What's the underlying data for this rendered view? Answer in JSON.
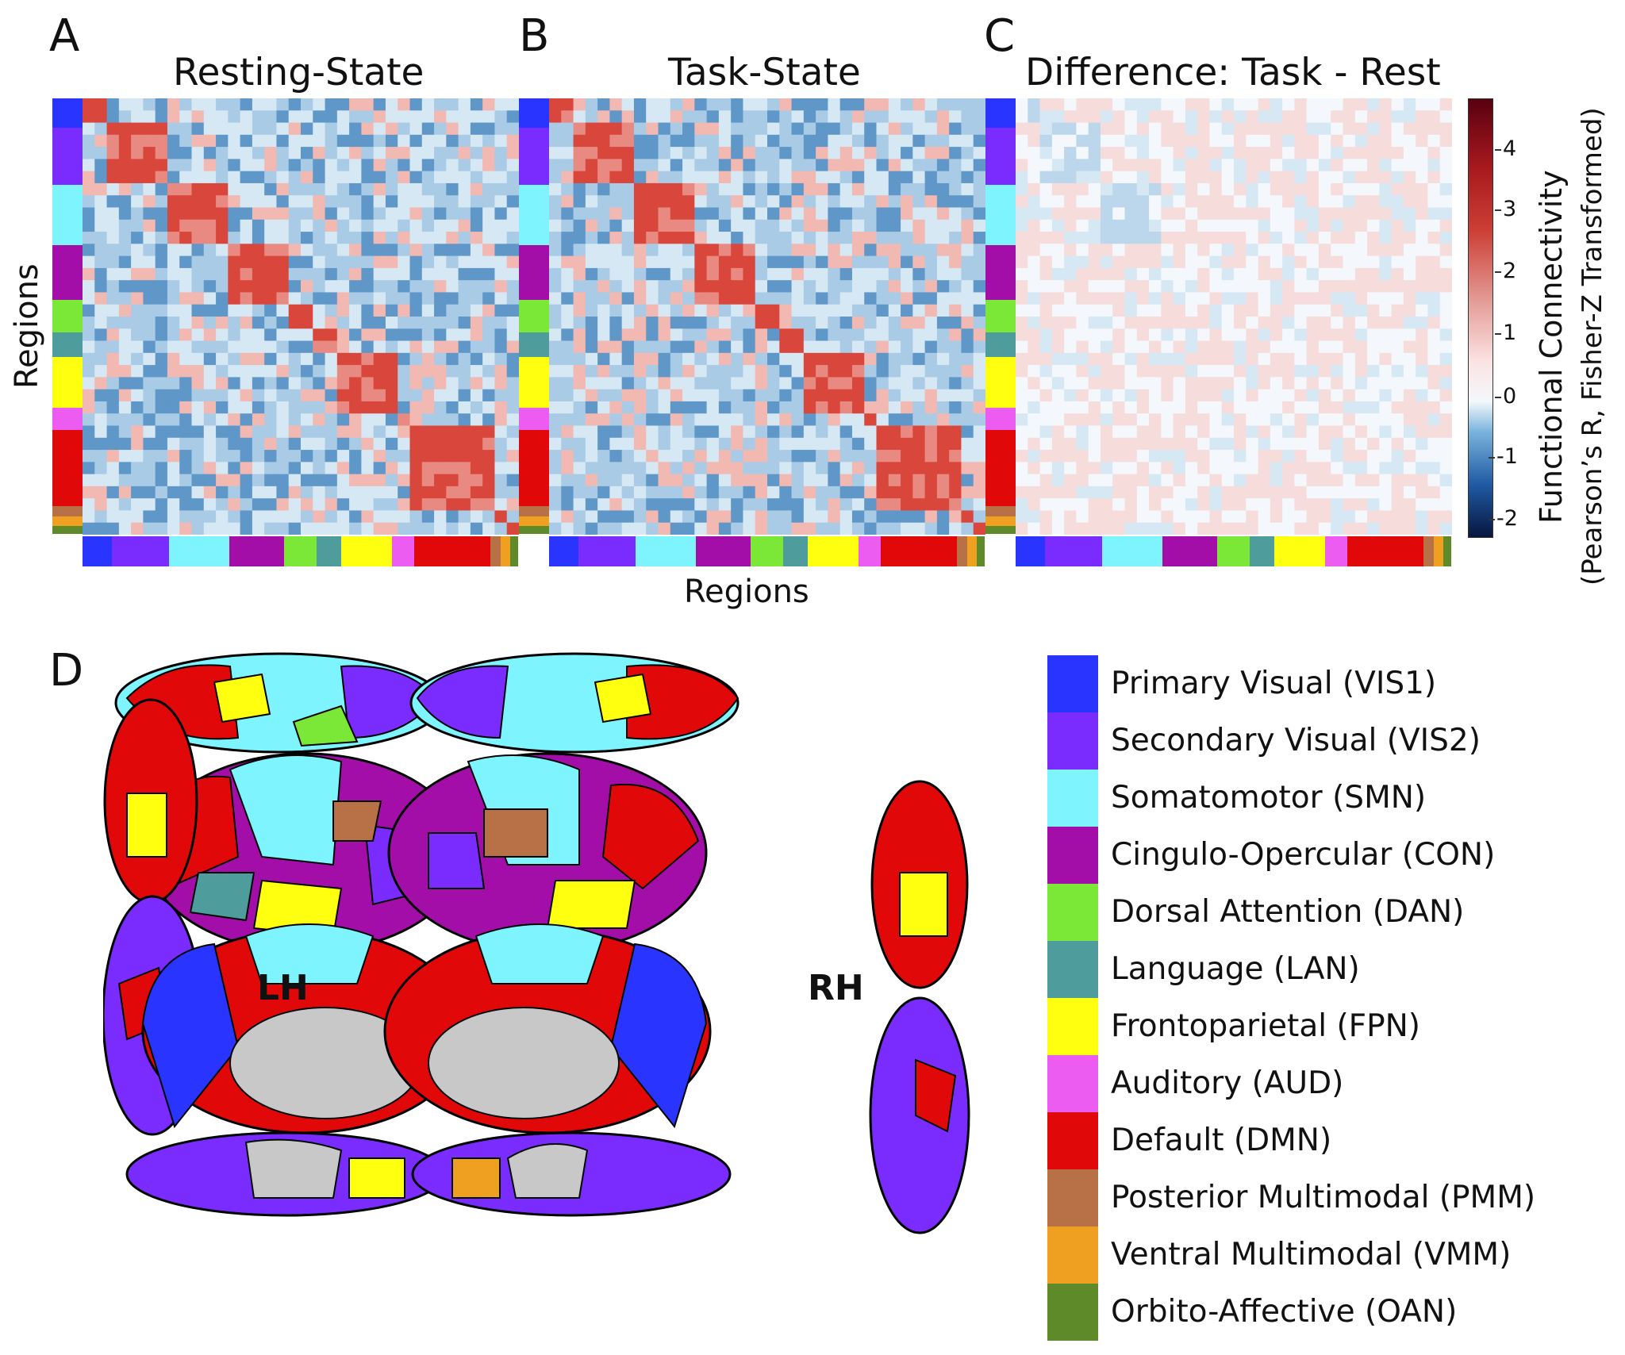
{
  "panels": [
    {
      "letter": "A",
      "title": "Resting-State"
    },
    {
      "letter": "B",
      "title": "Task-State"
    },
    {
      "letter": "C",
      "title": "Difference: Task - Rest"
    },
    {
      "letter": "D"
    }
  ],
  "axes": {
    "ylabel": "Regions",
    "xlabel": "Regions"
  },
  "colorbar": {
    "label_line1": "Functional Connectivity",
    "label_line2": "(Pearson’s R, Fisher-Z Transformed)",
    "ticks": [
      "4",
      "3",
      "2",
      "1",
      "0",
      "-1",
      "-2"
    ],
    "range": [
      -2.3,
      4.7
    ]
  },
  "hemispheres": {
    "left": "LH",
    "right": "RH"
  },
  "networks": [
    {
      "label": "Primary Visual (VIS1)",
      "color": "#2a34ff",
      "fraction": 0.068
    },
    {
      "label": "Secondary Visual (VIS2)",
      "color": "#7a2cff",
      "fraction": 0.131
    },
    {
      "label": "Somatomotor (SMN)",
      "color": "#7ef4ff",
      "fraction": 0.138
    },
    {
      "label": "Cingulo-Opercular (CON)",
      "color": "#a40ea8",
      "fraction": 0.125
    },
    {
      "label": "Dorsal Attention (DAN)",
      "color": "#7be838",
      "fraction": 0.075
    },
    {
      "label": "Language (LAN)",
      "color": "#4f9c9c",
      "fraction": 0.057
    },
    {
      "label": "Frontoparietal (FPN)",
      "color": "#ffff10",
      "fraction": 0.117
    },
    {
      "label": "Auditory (AUD)",
      "color": "#ec5cf0",
      "fraction": 0.05
    },
    {
      "label": "Default (DMN)",
      "color": "#e00808",
      "fraction": 0.175
    },
    {
      "label": "Posterior Multimodal (PMM)",
      "color": "#b87046",
      "fraction": 0.024
    },
    {
      "label": "Ventral Multimodal (VMM)",
      "color": "#f0a020",
      "fraction": 0.022
    },
    {
      "label": "Orbito-Affective (OAN)",
      "color": "#5f8a2a",
      "fraction": 0.018
    }
  ]
}
